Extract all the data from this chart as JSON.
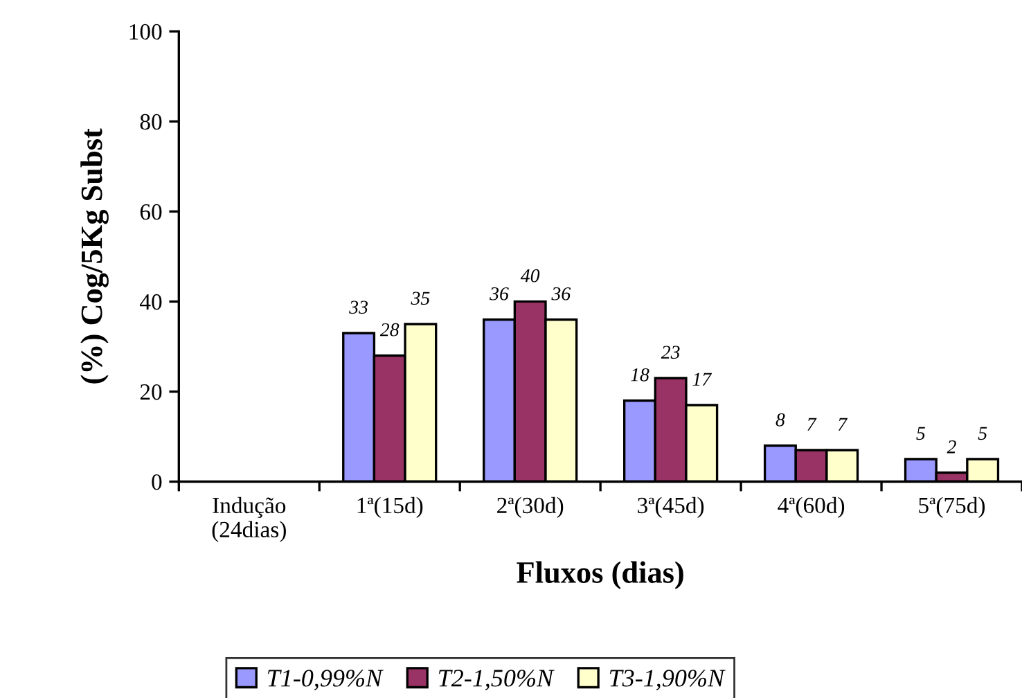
{
  "chart_data": {
    "type": "bar",
    "xlabel": "Fluxos (dias)",
    "ylabel": "(%) Cog/5Kg Subst",
    "categories": [
      "Indução\n(24dias)",
      "1ª(15d)",
      "2ª(30d)",
      "3ª(45d)",
      "4ª(60d)",
      "5ª(75d)"
    ],
    "series": [
      {
        "name": "T1-0,99%N",
        "color": "#9999ff",
        "values": [
          null,
          33,
          36,
          18,
          8,
          5
        ]
      },
      {
        "name": "T2-1,50%N",
        "color": "#993366",
        "values": [
          null,
          28,
          40,
          23,
          7,
          2
        ]
      },
      {
        "name": "T3-1,90%N",
        "color": "#ffffcc",
        "values": [
          null,
          35,
          36,
          17,
          7,
          5
        ]
      }
    ],
    "ylim": [
      0,
      100
    ],
    "yticks": [
      0,
      20,
      40,
      60,
      80,
      100
    ],
    "grid": false,
    "legend": "bottom",
    "data_labels": true
  }
}
